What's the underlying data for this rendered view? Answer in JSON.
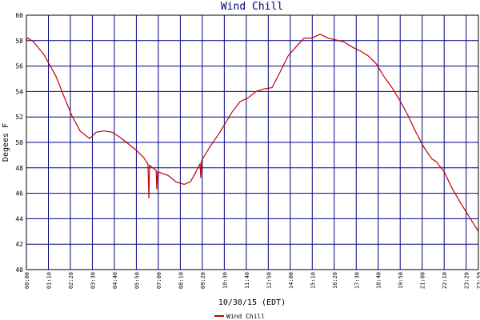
{
  "chart_data": {
    "type": "line",
    "title": "Wind Chill",
    "x_label": "10/30/15 (EDT)",
    "y_label": "Degees F",
    "x": [
      0,
      5,
      23,
      56,
      94,
      120,
      145,
      171,
      201,
      222,
      247,
      273,
      298,
      324,
      349,
      374,
      387,
      390,
      392,
      413,
      415,
      418,
      451,
      476,
      502,
      522,
      540,
      553,
      555,
      558,
      583,
      616,
      655,
      680,
      706,
      731,
      756,
      782,
      807,
      833,
      858,
      884,
      909,
      935,
      960,
      986,
      1011,
      1037,
      1062,
      1088,
      1113,
      1138,
      1164,
      1189,
      1215,
      1240,
      1266,
      1291,
      1304,
      1330,
      1355,
      1381,
      1406,
      1439
    ],
    "series": [
      {
        "name": "Wind Chill",
        "color": "#c00000",
        "values": [
          58.05,
          58.2,
          57.9,
          56.9,
          55.2,
          53.6,
          52.1,
          50.9,
          50.3,
          50.8,
          50.9,
          50.8,
          50.4,
          49.9,
          49.4,
          48.8,
          48.3,
          45.6,
          48.2,
          47.8,
          46.3,
          47.7,
          47.4,
          46.9,
          46.7,
          46.9,
          47.7,
          48.3,
          47.2,
          48.6,
          49.6,
          50.8,
          52.4,
          53.2,
          53.5,
          54.0,
          54.2,
          54.3,
          55.5,
          56.8,
          57.5,
          58.2,
          58.2,
          58.5,
          58.2,
          58.05,
          57.9,
          57.5,
          57.2,
          56.8,
          56.2,
          55.2,
          54.3,
          53.3,
          52.1,
          50.8,
          49.6,
          48.7,
          48.5,
          47.7,
          46.4,
          45.3,
          44.3,
          43.0
        ]
      }
    ],
    "xlim": [
      0,
      1439
    ],
    "xticks": [
      {
        "value": 0,
        "label": "00:00"
      },
      {
        "value": 70,
        "label": "01:10"
      },
      {
        "value": 140,
        "label": "02:20"
      },
      {
        "value": 210,
        "label": "03:30"
      },
      {
        "value": 280,
        "label": "04:40"
      },
      {
        "value": 350,
        "label": "05:50"
      },
      {
        "value": 420,
        "label": "07:00"
      },
      {
        "value": 490,
        "label": "08:10"
      },
      {
        "value": 560,
        "label": "09:20"
      },
      {
        "value": 630,
        "label": "10:30"
      },
      {
        "value": 700,
        "label": "11:40"
      },
      {
        "value": 770,
        "label": "12:50"
      },
      {
        "value": 840,
        "label": "14:00"
      },
      {
        "value": 910,
        "label": "15:10"
      },
      {
        "value": 980,
        "label": "16:20"
      },
      {
        "value": 1050,
        "label": "17:30"
      },
      {
        "value": 1120,
        "label": "18:40"
      },
      {
        "value": 1190,
        "label": "19:50"
      },
      {
        "value": 1260,
        "label": "21:00"
      },
      {
        "value": 1330,
        "label": "22:10"
      },
      {
        "value": 1400,
        "label": "23:20"
      },
      {
        "value": 1439,
        "label": "23:59"
      }
    ],
    "ylim": [
      40,
      60
    ],
    "yticks": [
      40,
      42,
      44,
      46,
      48,
      50,
      52,
      54,
      56,
      58,
      60
    ],
    "grid": true,
    "grid_color": "#000080"
  }
}
